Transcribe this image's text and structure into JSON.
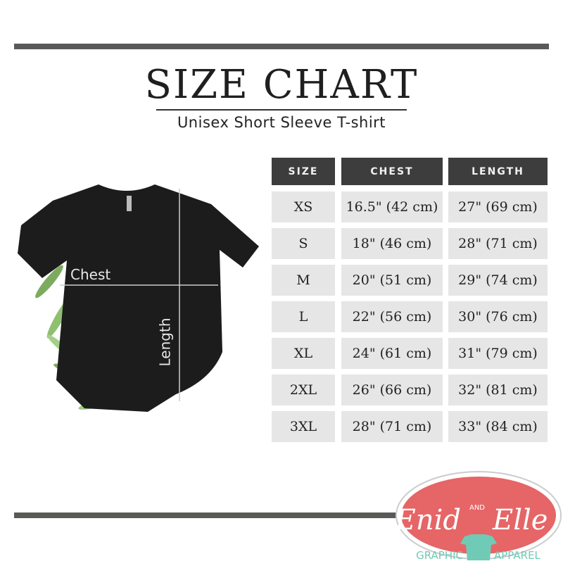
{
  "header": {
    "title": "SIZE CHART",
    "subtitle": "Unisex Short Sleeve T-shirt"
  },
  "diagram": {
    "chest_label": "Chest",
    "length_label": "Length"
  },
  "chart_data": {
    "type": "table",
    "columns": [
      "SIZE",
      "CHEST",
      "LENGTH"
    ],
    "rows": [
      [
        "XS",
        "16.5\" (42 cm)",
        "27\" (69 cm)"
      ],
      [
        "S",
        "18\" (46 cm)",
        "28\" (71 cm)"
      ],
      [
        "M",
        "20\" (51 cm)",
        "29\" (74 cm)"
      ],
      [
        "L",
        "22\" (56 cm)",
        "30\" (76 cm)"
      ],
      [
        "XL",
        "24\" (61 cm)",
        "31\" (79 cm)"
      ],
      [
        "2XL",
        "26\" (66 cm)",
        "32\" (81 cm)"
      ],
      [
        "3XL",
        "28\" (71 cm)",
        "33\" (84 cm)"
      ]
    ]
  },
  "logo": {
    "name_left": "Enid",
    "and": "AND",
    "name_right": "Elle",
    "tagline_left": "GRAPHIC",
    "tagline_right": "APPAREL"
  },
  "colors": {
    "header_bg": "#3d3d3d",
    "cell_bg": "#e6e6e6",
    "bar": "#595a57",
    "logo_red": "#e66566",
    "logo_teal": "#6fcbb5"
  }
}
